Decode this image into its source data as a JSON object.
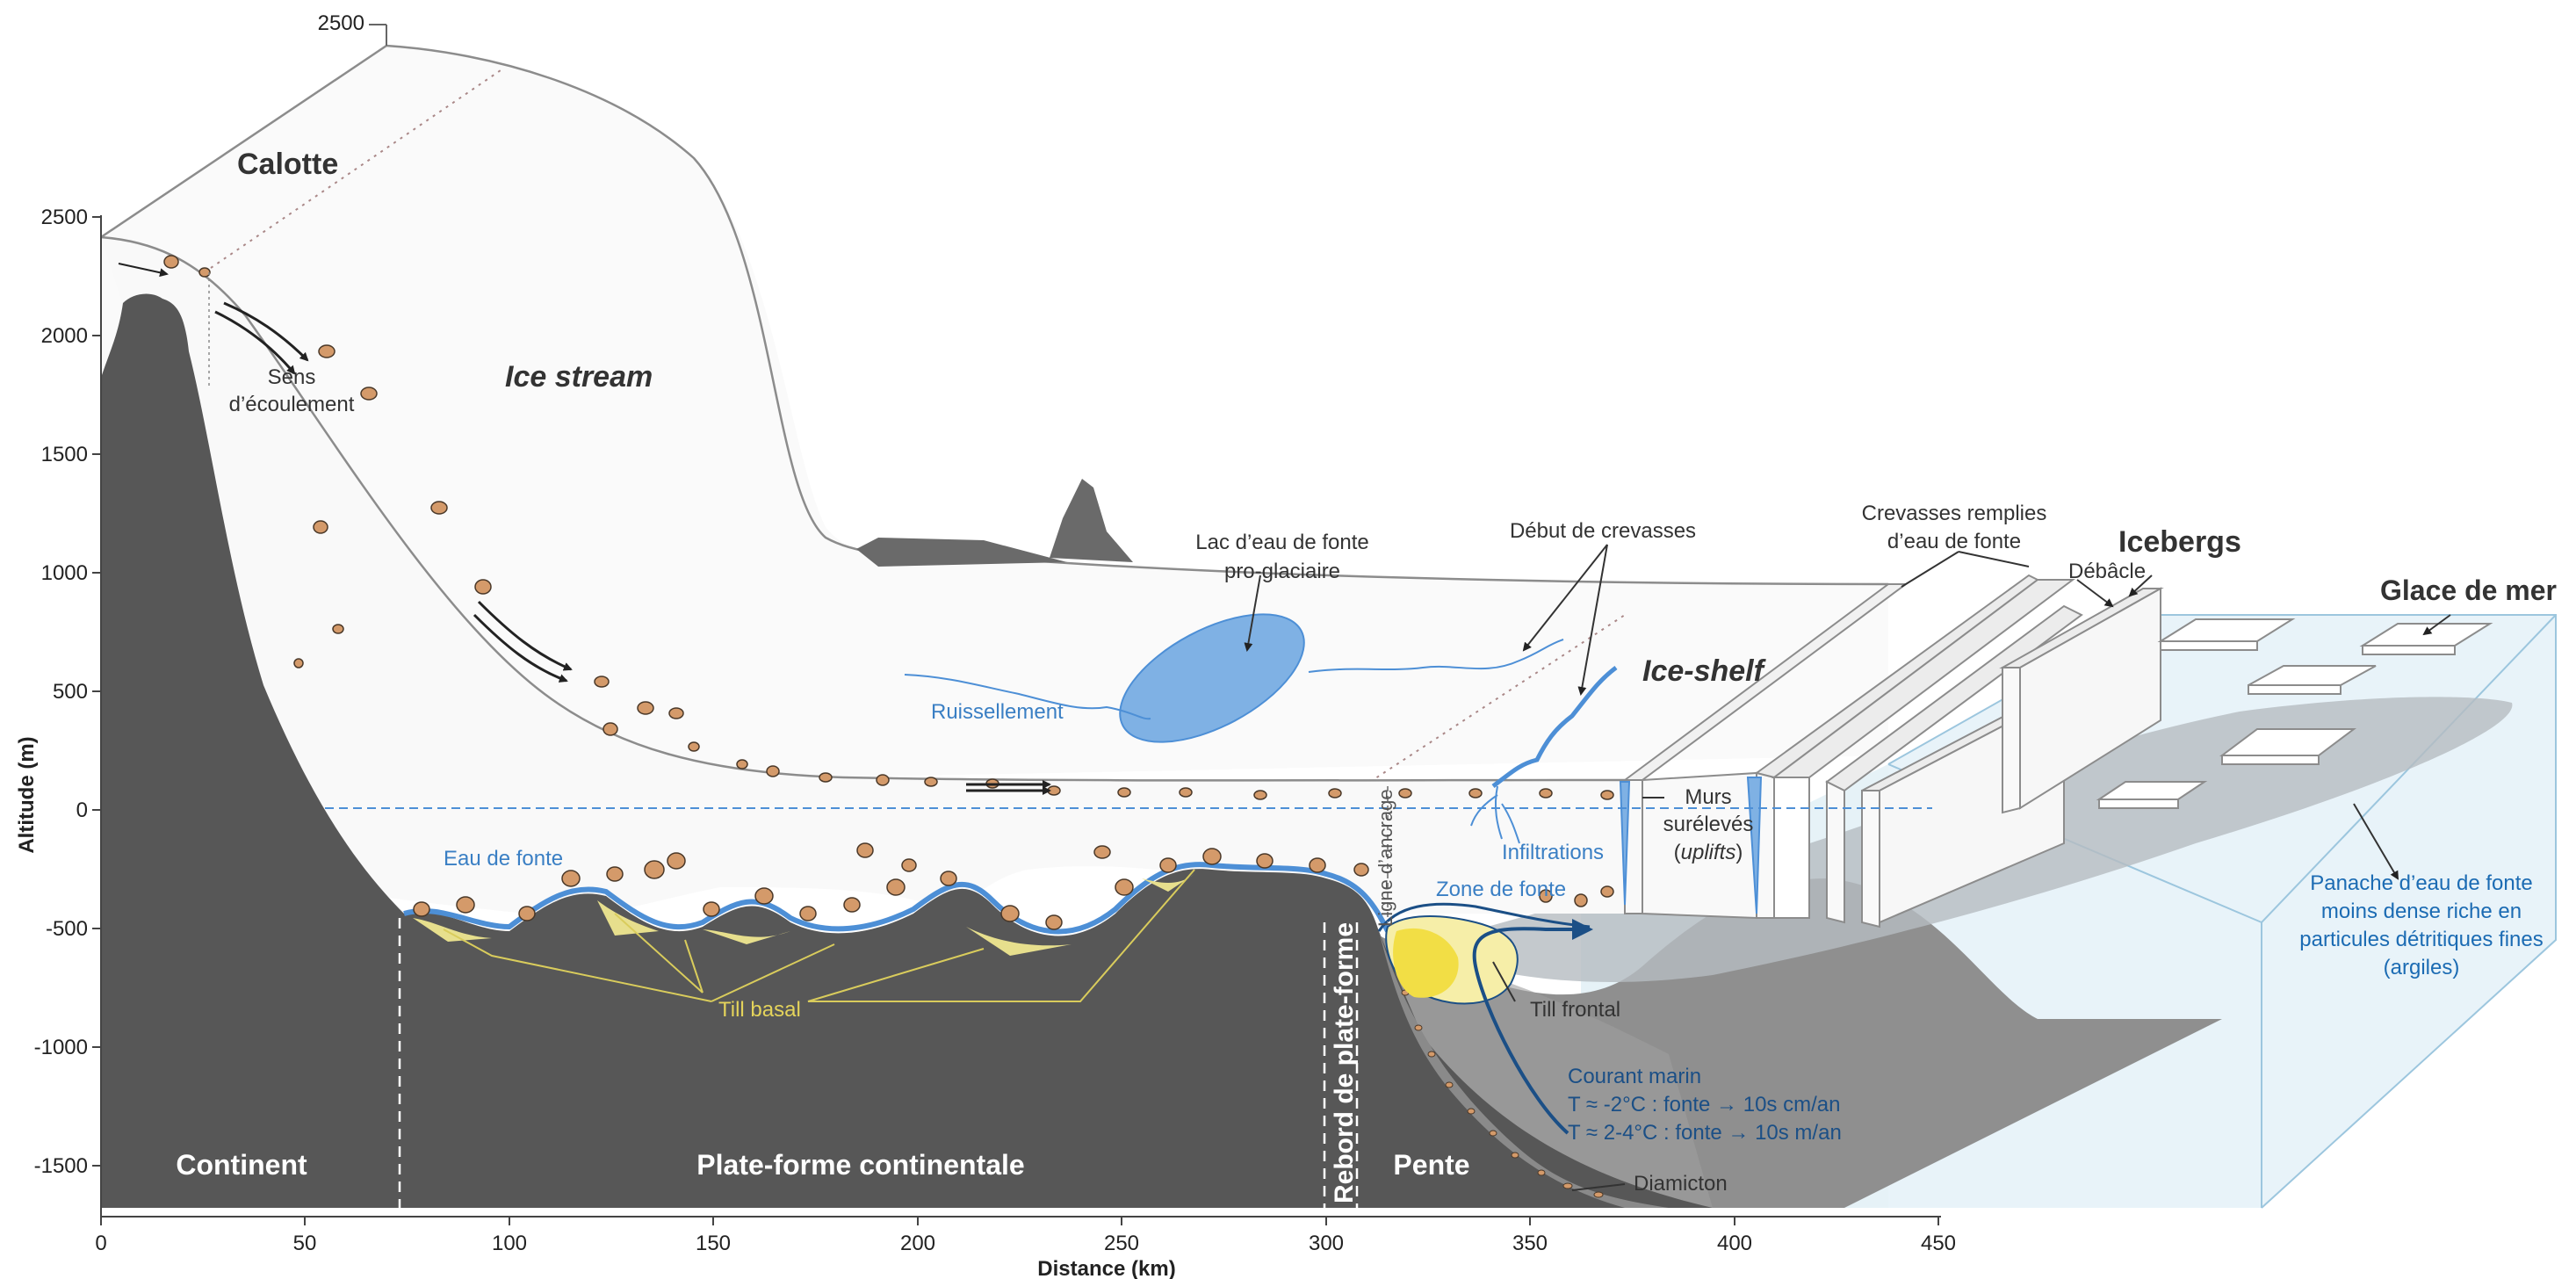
{
  "colors": {
    "bedrock": "#575757",
    "ice": "#f6f6f6",
    "ice_edge": "#8c8c8c",
    "meltwater": "#4d8fd6",
    "meltwater_fill": "#7fb1e4",
    "till": "#e7df8d",
    "till_line": "#d9cc5c",
    "sediment": "#d49a6a",
    "ocean": "#dbeef6",
    "plume": "#b9bec2",
    "dark_blue": "#1b4f86",
    "text_blue": "#3a7fc4"
  },
  "axes": {
    "y_title": "Altitude (m)",
    "x_title": "Distance (km)",
    "y_ticks": [
      "2500",
      "2000",
      "1500",
      "1000",
      "500",
      "0",
      "-500",
      "-1000",
      "-1500"
    ],
    "x_ticks": [
      "0",
      "50",
      "100",
      "150",
      "200",
      "250",
      "300",
      "350",
      "400",
      "450"
    ],
    "back_tick": "2500"
  },
  "labels": {
    "calotte": "Calotte",
    "ice_stream": "Ice stream",
    "sens": "Sens",
    "ecoulement": "d’écoulement",
    "lac_1": "Lac d’eau de fonte",
    "lac_2": "pro-glaciaire",
    "ruissellement": "Ruissellement",
    "debut_crevasses": "Début de crevasses",
    "crevasses_1": "Crevasses remplies",
    "crevasses_2": "d’eau de fonte",
    "icebergs": "Icebergs",
    "debacle": "Débâcle",
    "glace_de_mer": "Glace de mer",
    "ice_shelf": "Ice-shelf",
    "murs_1": "Murs",
    "murs_2": "surélevés",
    "murs_3_a": "(",
    "murs_3_b": "uplifts",
    "murs_3_c": ")",
    "infiltrations": "Infiltrations",
    "eau_de_fonte": "Eau de fonte",
    "ligne_ancrage": "Ligne d’ancrage",
    "zone_de_fonte": "Zone de fonte",
    "till_basal": "Till basal",
    "till_frontal": "Till frontal",
    "courant_1": "Courant marin",
    "courant_2": "T ≈ -2°C : fonte → 10s cm/an",
    "courant_3": "T ≈ 2-4°C : fonte → 10s m/an",
    "panache_1": "Panache d’eau de fonte",
    "panache_2": "moins dense riche en",
    "panache_3": "particules détritiques fines",
    "panache_4": "(argiles)",
    "diamicton": "Diamicton",
    "continent": "Continent",
    "plateforme": "Plate-forme continentale",
    "rebord": "Rebord de plate-forme",
    "pente": "Pente"
  }
}
